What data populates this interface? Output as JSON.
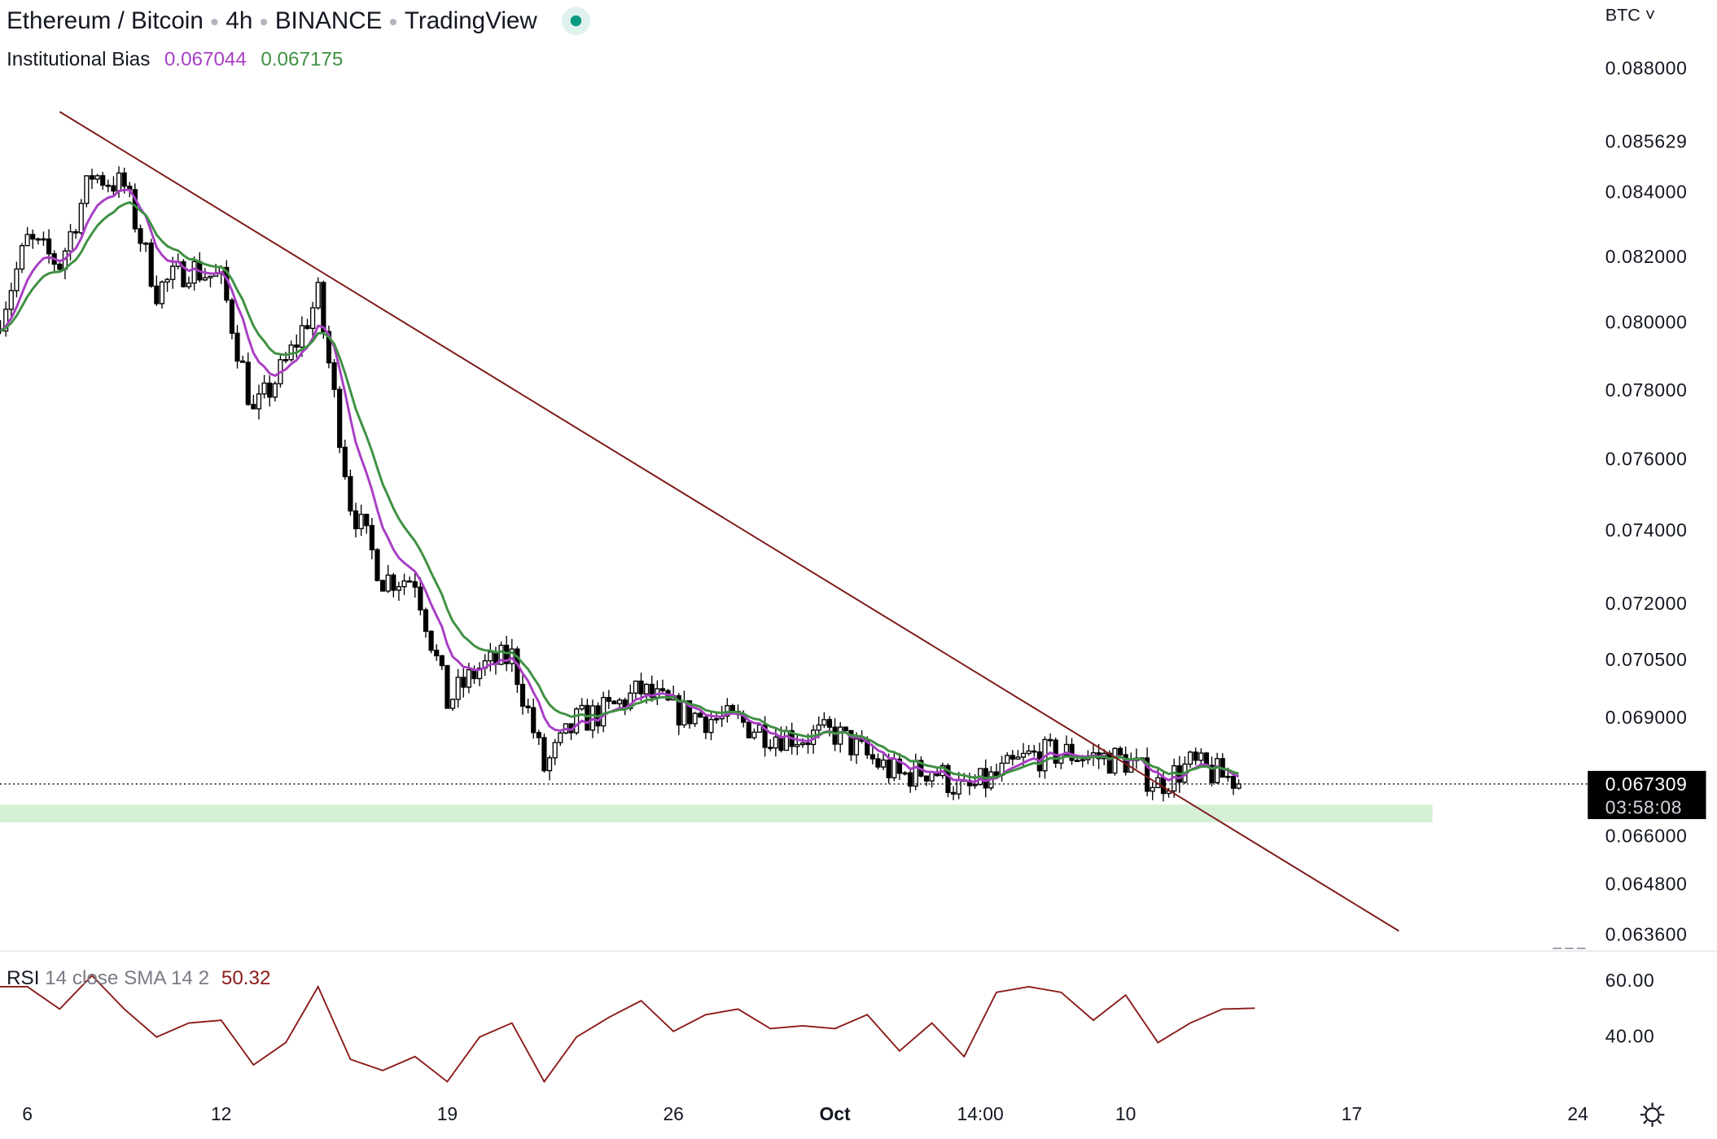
{
  "header": {
    "symbol": "Ethereum / Bitcoin",
    "interval": "4h",
    "exchange": "BINANCE",
    "source": "TradingView",
    "status_icon": "market-open-dot-icon",
    "currency_menu": "BTC ˅"
  },
  "indicator": {
    "name": "Institutional Bias",
    "fast_value": "0.067044",
    "slow_value": "0.067175",
    "fast_color": "#a83fc4",
    "slow_color": "#3f9142"
  },
  "rsi_legend": {
    "name": "RSI",
    "params": "14 close SMA 14 2",
    "value": "50.32",
    "color": "#8b1a1a"
  },
  "current_price": {
    "price": "0.067309",
    "countdown": "03:58:08"
  },
  "price_labels": [
    "0.088000",
    "0.085629",
    "0.084000",
    "0.082000",
    "0.080000",
    "0.078000",
    "0.076000",
    "0.074000",
    "0.072000",
    "0.070500",
    "0.069000",
    "0.066000",
    "0.064800",
    "0.063600"
  ],
  "rsi_labels": [
    "60.00",
    "40.00"
  ],
  "time_labels": [
    {
      "label": "6",
      "date": "Sep 06 00:00",
      "bold": false
    },
    {
      "label": "12",
      "date": "Sep 12 00:00",
      "bold": false
    },
    {
      "label": "19",
      "date": "Sep 19 00:00",
      "bold": false
    },
    {
      "label": "26",
      "date": "Sep 26 00:00",
      "bold": false
    },
    {
      "label": "Oct",
      "date": "Oct 01 00:00",
      "bold": true
    },
    {
      "label": "14:00",
      "date": "Oct 05 12:00",
      "bold": false
    },
    {
      "label": "10",
      "date": "Oct 10 00:00",
      "bold": false
    },
    {
      "label": "17",
      "date": "Oct 17 00:00",
      "bold": false
    },
    {
      "label": "24",
      "date": "Oct 24 00:00",
      "bold": false
    }
  ],
  "chart_data": {
    "type": "candlestick",
    "scale": "log",
    "ylim": [
      0.0636,
      0.088
    ],
    "xlim": [
      "Sep 05 00:00",
      "Oct 24 00:00"
    ],
    "grid": false,
    "daily_close_dates_start": "Sep 05",
    "daily_closes": [
      0.0798,
      0.0825,
      0.0818,
      0.0846,
      0.0842,
      0.081,
      0.0817,
      0.0813,
      0.0773,
      0.0788,
      0.0808,
      0.0748,
      0.0727,
      0.0727,
      0.0694,
      0.0703,
      0.0706,
      0.0677,
      0.0689,
      0.0692,
      0.0697,
      0.0692,
      0.069,
      0.0689,
      0.0686,
      0.0685,
      0.0686,
      0.068,
      0.0675,
      0.0677,
      0.0671,
      0.0675,
      0.068,
      0.0681,
      0.068,
      0.0679,
      0.0673,
      0.0678,
      0.0675,
      0.067309
    ],
    "last_price": 0.067309,
    "trendline": {
      "start": {
        "date": "Sep 07 00:00",
        "price": 0.0866
      },
      "end": {
        "date": "Oct 18 11:00",
        "price": 0.0637
      },
      "color": "#7f1d1d"
    },
    "support_zone": {
      "from": "Sep 05 00:00",
      "to": "Oct 19 12:00",
      "low": 0.06635,
      "high": 0.06679,
      "color": "#d6f0d6"
    },
    "rsi": {
      "ylim_labels": [
        40,
        60
      ],
      "daily_values": [
        58,
        58,
        50,
        62,
        50,
        40,
        45,
        46,
        30,
        38,
        58,
        32,
        28,
        33,
        24,
        40,
        45,
        24,
        40,
        47,
        53,
        42,
        48,
        50,
        43,
        44,
        43,
        48,
        35,
        45,
        33,
        56,
        58,
        56,
        46,
        55,
        38,
        45,
        50,
        50.32
      ],
      "color": "#8b1a1a"
    },
    "up_color": "#ffffff",
    "down_color": "#000000"
  }
}
